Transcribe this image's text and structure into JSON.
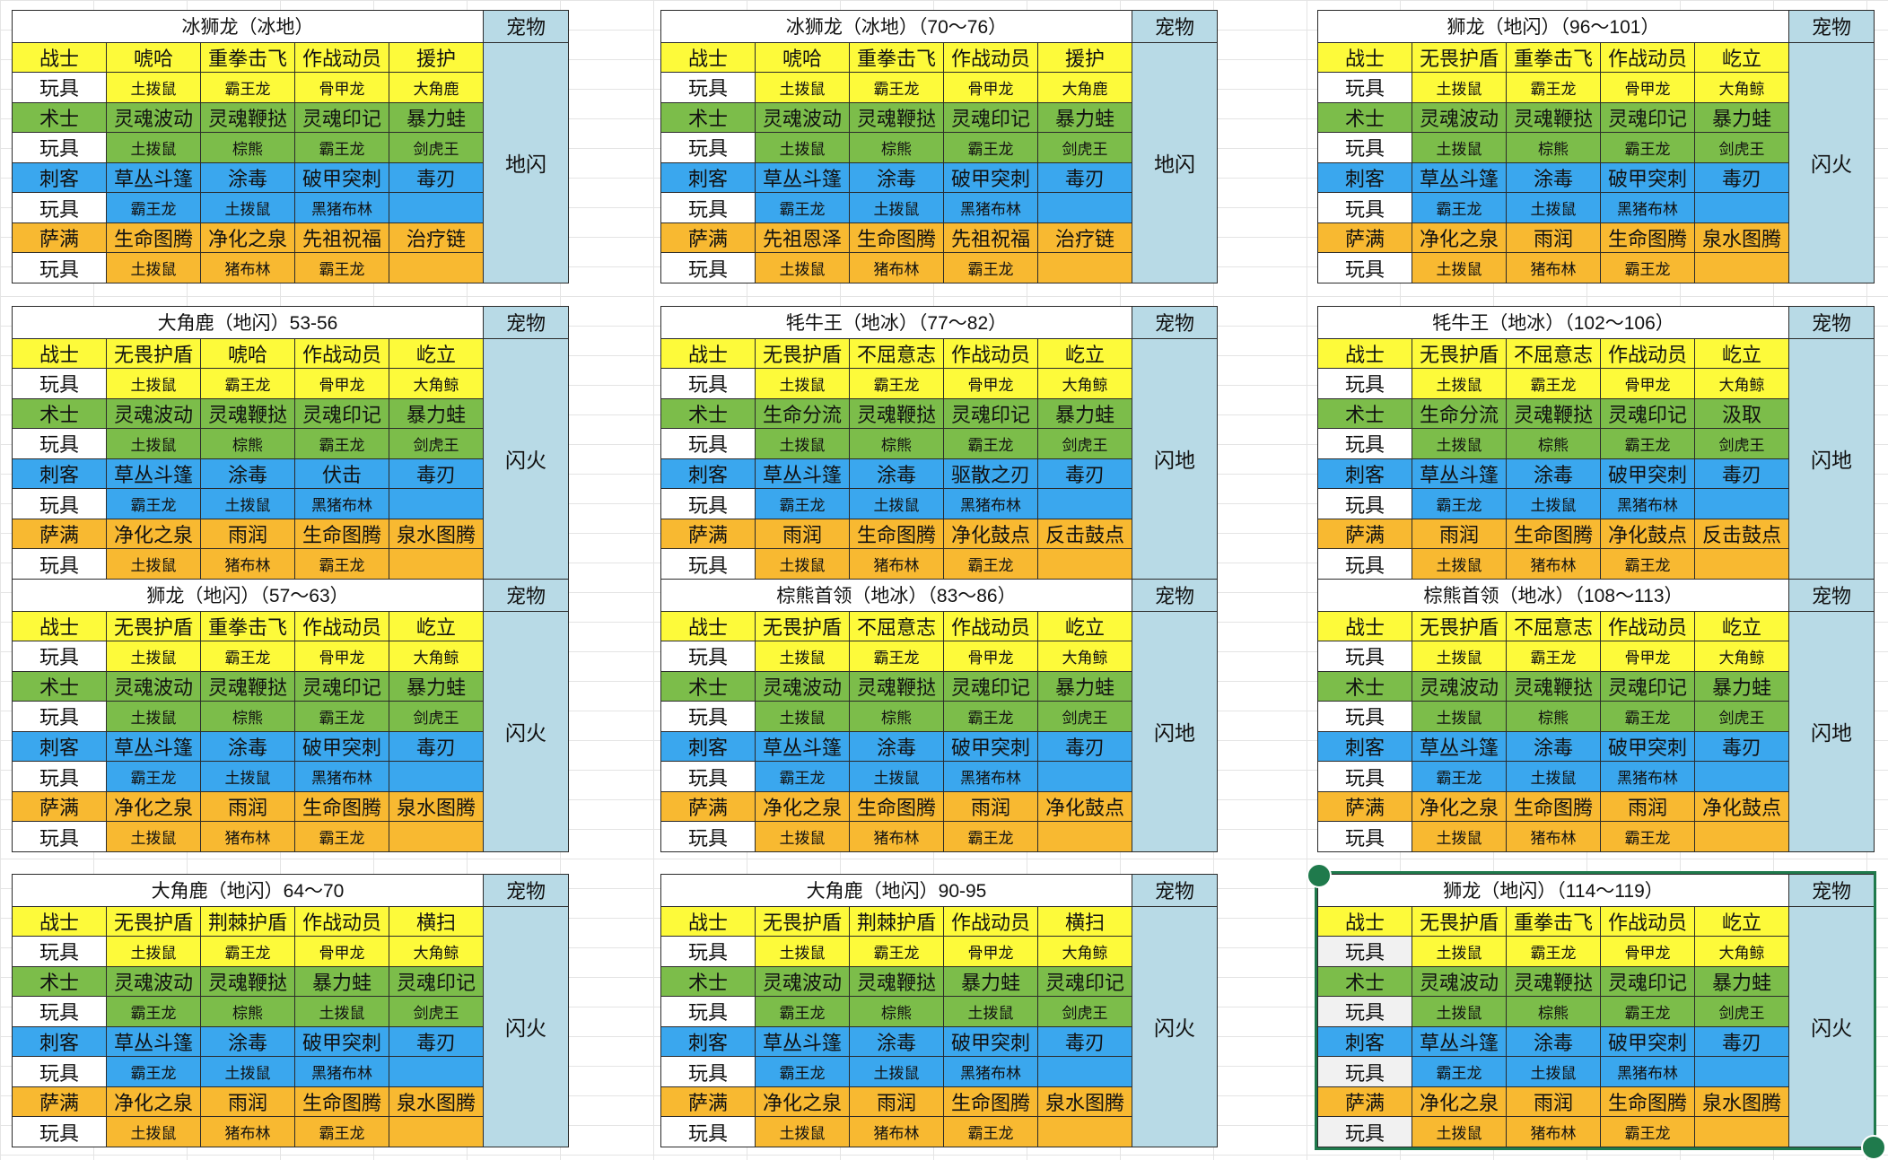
{
  "role_labels": [
    "战士",
    "术士",
    "刺客",
    "萨满"
  ],
  "toy_label": "玩具",
  "pet_header": "宠物",
  "role_colors": [
    "#fdfa3a",
    "#7cbd4a",
    "#3aa7ee",
    "#f8b931"
  ],
  "selected_block_index": 11,
  "blocks": [
    {
      "title": "冰狮龙（冰地）",
      "pet": "地闪",
      "rows": [
        {
          "skills": [
            "唬哈",
            "重拳击飞",
            "作战动员",
            "援护"
          ],
          "toys": [
            "土拨鼠",
            "霸王龙",
            "骨甲龙",
            "大角鹿"
          ]
        },
        {
          "skills": [
            "灵魂波动",
            "灵魂鞭挞",
            "灵魂印记",
            "暴力蛙"
          ],
          "toys": [
            "土拨鼠",
            "棕熊",
            "霸王龙",
            "剑虎王"
          ]
        },
        {
          "skills": [
            "草丛斗篷",
            "涂毒",
            "破甲突刺",
            "毒刃"
          ],
          "toys": [
            "霸王龙",
            "土拨鼠",
            "黑猪布林",
            ""
          ]
        },
        {
          "skills": [
            "生命图腾",
            "净化之泉",
            "先祖祝福",
            "治疗链"
          ],
          "toys": [
            "土拨鼠",
            "猪布林",
            "霸王龙",
            ""
          ]
        }
      ]
    },
    {
      "title": "冰狮龙（冰地）（70～76）",
      "pet": "地闪",
      "rows": [
        {
          "skills": [
            "唬哈",
            "重拳击飞",
            "作战动员",
            "援护"
          ],
          "toys": [
            "土拨鼠",
            "霸王龙",
            "骨甲龙",
            "大角鹿"
          ]
        },
        {
          "skills": [
            "灵魂波动",
            "灵魂鞭挞",
            "灵魂印记",
            "暴力蛙"
          ],
          "toys": [
            "土拨鼠",
            "棕熊",
            "霸王龙",
            "剑虎王"
          ]
        },
        {
          "skills": [
            "草丛斗篷",
            "涂毒",
            "破甲突刺",
            "毒刃"
          ],
          "toys": [
            "霸王龙",
            "土拨鼠",
            "黑猪布林",
            ""
          ]
        },
        {
          "skills": [
            "先祖恩泽",
            "生命图腾",
            "先祖祝福",
            "治疗链"
          ],
          "toys": [
            "土拨鼠",
            "猪布林",
            "霸王龙",
            ""
          ]
        }
      ]
    },
    {
      "title": "狮龙（地闪）（96～101）",
      "pet": "闪火",
      "rows": [
        {
          "skills": [
            "无畏护盾",
            "重拳击飞",
            "作战动员",
            "屹立"
          ],
          "toys": [
            "土拨鼠",
            "霸王龙",
            "骨甲龙",
            "大角鲸"
          ]
        },
        {
          "skills": [
            "灵魂波动",
            "灵魂鞭挞",
            "灵魂印记",
            "暴力蛙"
          ],
          "toys": [
            "土拨鼠",
            "棕熊",
            "霸王龙",
            "剑虎王"
          ]
        },
        {
          "skills": [
            "草丛斗篷",
            "涂毒",
            "破甲突刺",
            "毒刃"
          ],
          "toys": [
            "霸王龙",
            "土拨鼠",
            "黑猪布林",
            ""
          ]
        },
        {
          "skills": [
            "净化之泉",
            "雨润",
            "生命图腾",
            "泉水图腾"
          ],
          "toys": [
            "土拨鼠",
            "猪布林",
            "霸王龙",
            ""
          ]
        }
      ]
    },
    {
      "title": "大角鹿（地闪）53-56",
      "pet": "闪火",
      "rows": [
        {
          "skills": [
            "无畏护盾",
            "唬哈",
            "作战动员",
            "屹立"
          ],
          "toys": [
            "土拨鼠",
            "霸王龙",
            "骨甲龙",
            "大角鲸"
          ]
        },
        {
          "skills": [
            "灵魂波动",
            "灵魂鞭挞",
            "灵魂印记",
            "暴力蛙"
          ],
          "toys": [
            "土拨鼠",
            "棕熊",
            "霸王龙",
            "剑虎王"
          ]
        },
        {
          "skills": [
            "草丛斗篷",
            "涂毒",
            "伏击",
            "毒刃"
          ],
          "toys": [
            "霸王龙",
            "土拨鼠",
            "黑猪布林",
            ""
          ]
        },
        {
          "skills": [
            "净化之泉",
            "雨润",
            "生命图腾",
            "泉水图腾"
          ],
          "toys": [
            "土拨鼠",
            "猪布林",
            "霸王龙",
            ""
          ]
        }
      ]
    },
    {
      "title": "牦牛王（地冰）（77～82）",
      "pet": "闪地",
      "rows": [
        {
          "skills": [
            "无畏护盾",
            "不屈意志",
            "作战动员",
            "屹立"
          ],
          "toys": [
            "土拨鼠",
            "霸王龙",
            "骨甲龙",
            "大角鲸"
          ]
        },
        {
          "skills": [
            "生命分流",
            "灵魂鞭挞",
            "灵魂印记",
            "暴力蛙"
          ],
          "toys": [
            "土拨鼠",
            "棕熊",
            "霸王龙",
            "剑虎王"
          ]
        },
        {
          "skills": [
            "草丛斗篷",
            "涂毒",
            "驱散之刃",
            "毒刃"
          ],
          "toys": [
            "霸王龙",
            "土拨鼠",
            "黑猪布林",
            ""
          ]
        },
        {
          "skills": [
            "雨润",
            "生命图腾",
            "净化鼓点",
            "反击鼓点"
          ],
          "toys": [
            "土拨鼠",
            "猪布林",
            "霸王龙",
            ""
          ]
        }
      ]
    },
    {
      "title": "牦牛王（地冰）（102～106）",
      "pet": "闪地",
      "rows": [
        {
          "skills": [
            "无畏护盾",
            "不屈意志",
            "作战动员",
            "屹立"
          ],
          "toys": [
            "土拨鼠",
            "霸王龙",
            "骨甲龙",
            "大角鲸"
          ]
        },
        {
          "skills": [
            "生命分流",
            "灵魂鞭挞",
            "灵魂印记",
            "汲取"
          ],
          "toys": [
            "土拨鼠",
            "棕熊",
            "霸王龙",
            "剑虎王"
          ]
        },
        {
          "skills": [
            "草丛斗篷",
            "涂毒",
            "破甲突刺",
            "毒刃"
          ],
          "toys": [
            "霸王龙",
            "土拨鼠",
            "黑猪布林",
            ""
          ]
        },
        {
          "skills": [
            "雨润",
            "生命图腾",
            "净化鼓点",
            "反击鼓点"
          ],
          "toys": [
            "土拨鼠",
            "猪布林",
            "霸王龙",
            ""
          ]
        }
      ]
    },
    {
      "title": "狮龙（地闪）（57～63）",
      "pet": "闪火",
      "rows": [
        {
          "skills": [
            "无畏护盾",
            "重拳击飞",
            "作战动员",
            "屹立"
          ],
          "toys": [
            "土拨鼠",
            "霸王龙",
            "骨甲龙",
            "大角鲸"
          ]
        },
        {
          "skills": [
            "灵魂波动",
            "灵魂鞭挞",
            "灵魂印记",
            "暴力蛙"
          ],
          "toys": [
            "土拨鼠",
            "棕熊",
            "霸王龙",
            "剑虎王"
          ]
        },
        {
          "skills": [
            "草丛斗篷",
            "涂毒",
            "破甲突刺",
            "毒刃"
          ],
          "toys": [
            "霸王龙",
            "土拨鼠",
            "黑猪布林",
            ""
          ]
        },
        {
          "skills": [
            "净化之泉",
            "雨润",
            "生命图腾",
            "泉水图腾"
          ],
          "toys": [
            "土拨鼠",
            "猪布林",
            "霸王龙",
            ""
          ]
        }
      ]
    },
    {
      "title": "棕熊首领（地冰）（83～86）",
      "pet": "闪地",
      "rows": [
        {
          "skills": [
            "无畏护盾",
            "不屈意志",
            "作战动员",
            "屹立"
          ],
          "toys": [
            "土拨鼠",
            "霸王龙",
            "骨甲龙",
            "大角鲸"
          ]
        },
        {
          "skills": [
            "灵魂波动",
            "灵魂鞭挞",
            "灵魂印记",
            "暴力蛙"
          ],
          "toys": [
            "土拨鼠",
            "棕熊",
            "霸王龙",
            "剑虎王"
          ]
        },
        {
          "skills": [
            "草丛斗篷",
            "涂毒",
            "破甲突刺",
            "毒刃"
          ],
          "toys": [
            "霸王龙",
            "土拨鼠",
            "黑猪布林",
            ""
          ]
        },
        {
          "skills": [
            "净化之泉",
            "生命图腾",
            "雨润",
            "净化鼓点"
          ],
          "toys": [
            "土拨鼠",
            "猪布林",
            "霸王龙",
            ""
          ]
        }
      ]
    },
    {
      "title": "棕熊首领（地冰）（108～113）",
      "pet": "闪地",
      "rows": [
        {
          "skills": [
            "无畏护盾",
            "不屈意志",
            "作战动员",
            "屹立"
          ],
          "toys": [
            "土拨鼠",
            "霸王龙",
            "骨甲龙",
            "大角鲸"
          ]
        },
        {
          "skills": [
            "灵魂波动",
            "灵魂鞭挞",
            "灵魂印记",
            "暴力蛙"
          ],
          "toys": [
            "土拨鼠",
            "棕熊",
            "霸王龙",
            "剑虎王"
          ]
        },
        {
          "skills": [
            "草丛斗篷",
            "涂毒",
            "破甲突刺",
            "毒刃"
          ],
          "toys": [
            "霸王龙",
            "土拨鼠",
            "黑猪布林",
            ""
          ]
        },
        {
          "skills": [
            "净化之泉",
            "生命图腾",
            "雨润",
            "净化鼓点"
          ],
          "toys": [
            "土拨鼠",
            "猪布林",
            "霸王龙",
            ""
          ]
        }
      ]
    },
    {
      "title": "大角鹿（地闪）64～70",
      "pet": "闪火",
      "rows": [
        {
          "skills": [
            "无畏护盾",
            "荆棘护盾",
            "作战动员",
            "横扫"
          ],
          "toys": [
            "土拨鼠",
            "霸王龙",
            "骨甲龙",
            "大角鲸"
          ]
        },
        {
          "skills": [
            "灵魂波动",
            "灵魂鞭挞",
            "暴力蛙",
            "灵魂印记"
          ],
          "toys": [
            "霸王龙",
            "棕熊",
            "土拨鼠",
            "剑虎王"
          ]
        },
        {
          "skills": [
            "草丛斗篷",
            "涂毒",
            "破甲突刺",
            "毒刃"
          ],
          "toys": [
            "霸王龙",
            "土拨鼠",
            "黑猪布林",
            ""
          ]
        },
        {
          "skills": [
            "净化之泉",
            "雨润",
            "生命图腾",
            "泉水图腾"
          ],
          "toys": [
            "土拨鼠",
            "猪布林",
            "霸王龙",
            ""
          ]
        }
      ]
    },
    {
      "title": "大角鹿（地闪）90-95",
      "pet": "闪火",
      "rows": [
        {
          "skills": [
            "无畏护盾",
            "荆棘护盾",
            "作战动员",
            "横扫"
          ],
          "toys": [
            "土拨鼠",
            "霸王龙",
            "骨甲龙",
            "大角鲸"
          ]
        },
        {
          "skills": [
            "灵魂波动",
            "灵魂鞭挞",
            "暴力蛙",
            "灵魂印记"
          ],
          "toys": [
            "霸王龙",
            "棕熊",
            "土拨鼠",
            "剑虎王"
          ]
        },
        {
          "skills": [
            "草丛斗篷",
            "涂毒",
            "破甲突刺",
            "毒刃"
          ],
          "toys": [
            "霸王龙",
            "土拨鼠",
            "黑猪布林",
            ""
          ]
        },
        {
          "skills": [
            "净化之泉",
            "雨润",
            "生命图腾",
            "泉水图腾"
          ],
          "toys": [
            "土拨鼠",
            "猪布林",
            "霸王龙",
            ""
          ]
        }
      ]
    },
    {
      "title": "狮龙（地闪）（114～119）",
      "pet": "闪火",
      "rows": [
        {
          "skills": [
            "无畏护盾",
            "重拳击飞",
            "作战动员",
            "屹立"
          ],
          "toys": [
            "土拨鼠",
            "霸王龙",
            "骨甲龙",
            "大角鲸"
          ]
        },
        {
          "skills": [
            "灵魂波动",
            "灵魂鞭挞",
            "灵魂印记",
            "暴力蛙"
          ],
          "toys": [
            "土拨鼠",
            "棕熊",
            "霸王龙",
            "剑虎王"
          ]
        },
        {
          "skills": [
            "草丛斗篷",
            "涂毒",
            "破甲突刺",
            "毒刃"
          ],
          "toys": [
            "霸王龙",
            "土拨鼠",
            "黑猪布林",
            ""
          ]
        },
        {
          "skills": [
            "净化之泉",
            "雨润",
            "生命图腾",
            "泉水图腾"
          ],
          "toys": [
            "土拨鼠",
            "猪布林",
            "霸王龙",
            ""
          ]
        }
      ]
    }
  ]
}
